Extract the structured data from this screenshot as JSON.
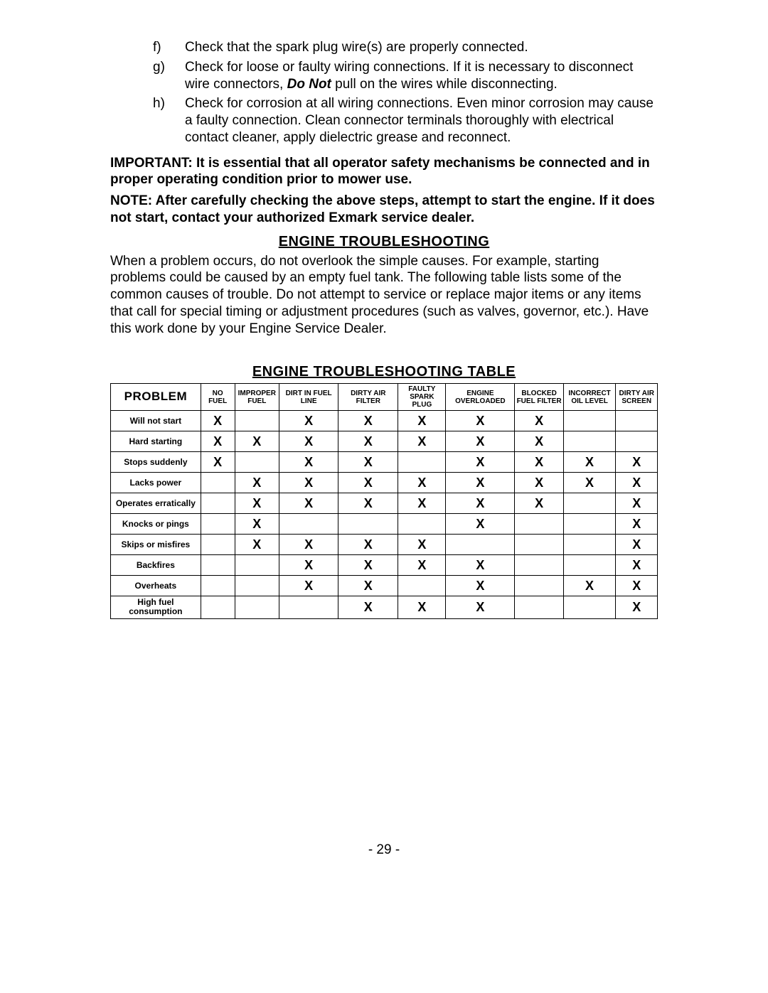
{
  "list_items": [
    {
      "marker": "f)",
      "text_1": "Check that the spark plug wire(s) are properly connected."
    },
    {
      "marker": "g)",
      "text_1": "Check for loose or faulty wiring connections.  If it is necessary to disconnect wire connectors, ",
      "bold_italic": "Do Not",
      "text_2": " pull on the wires while disconnecting."
    },
    {
      "marker": "h)",
      "text_1": "Check for corrosion at all wiring connections.  Even minor corrosion may cause a faulty connection.  Clean connector terminals thoroughly with electrical contact cleaner, apply dielectric grease and reconnect."
    }
  ],
  "important": "IMPORTANT:  It is essential that all operator safety mechanisms be connected and in proper operating condition prior to mower use.",
  "note": "NOTE:  After carefully checking the above steps, attempt to start the engine.  If it does not start, contact your authorized Exmark service dealer.",
  "heading1": "ENGINE TROUBLESHOOTING",
  "trouble_para": "When a problem occurs, do not overlook the simple causes.  For example, starting problems could be caused by an empty fuel tank.  The following table lists some of the common causes of trouble.  Do not attempt to service or replace major items or any items that call for special timing or adjustment procedures (such as valves, governor, etc.).  Have this work done by your Engine Service Dealer.",
  "heading2": "ENGINE TROUBLESHOOTING TABLE",
  "table": {
    "problem_head": "PROBLEM",
    "columns": [
      "NO FUEL",
      "IMPROPER FUEL",
      "DIRT IN FUEL LINE",
      "DIRTY AIR FILTER",
      "FAULTY SPARK PLUG",
      "ENGINE OVERLOADED",
      "BLOCKED FUEL FILTER",
      "INCORRECT OIL LEVEL",
      "DIRTY AIR SCREEN"
    ],
    "rows": [
      {
        "label": "Will not start",
        "cells": [
          "X",
          "",
          "X",
          "X",
          "X",
          "X",
          "X",
          "",
          ""
        ]
      },
      {
        "label": "Hard starting",
        "cells": [
          "X",
          "X",
          "X",
          "X",
          "X",
          "X",
          "X",
          "",
          ""
        ]
      },
      {
        "label": "Stops suddenly",
        "cells": [
          "X",
          "",
          "X",
          "X",
          "",
          "X",
          "X",
          "X",
          "X"
        ]
      },
      {
        "label": "Lacks power",
        "cells": [
          "",
          "X",
          "X",
          "X",
          "X",
          "X",
          "X",
          "X",
          "X"
        ]
      },
      {
        "label": "Operates erratically",
        "cells": [
          "",
          "X",
          "X",
          "X",
          "X",
          "X",
          "X",
          "",
          "X"
        ]
      },
      {
        "label": "Knocks or pings",
        "cells": [
          "",
          "X",
          "",
          "",
          "",
          "X",
          "",
          "",
          "X"
        ]
      },
      {
        "label": "Skips or misfires",
        "cells": [
          "",
          "X",
          "X",
          "X",
          "X",
          "",
          "",
          "",
          "X"
        ]
      },
      {
        "label": "Backfires",
        "cells": [
          "",
          "",
          "X",
          "X",
          "X",
          "X",
          "",
          "",
          "X"
        ]
      },
      {
        "label": "Overheats",
        "cells": [
          "",
          "",
          "X",
          "X",
          "",
          "X",
          "",
          "X",
          "X"
        ]
      },
      {
        "label": "High fuel consumption",
        "cells": [
          "",
          "",
          "",
          "X",
          "X",
          "X",
          "",
          "",
          "X"
        ]
      }
    ]
  },
  "page_number": "- 29 -"
}
